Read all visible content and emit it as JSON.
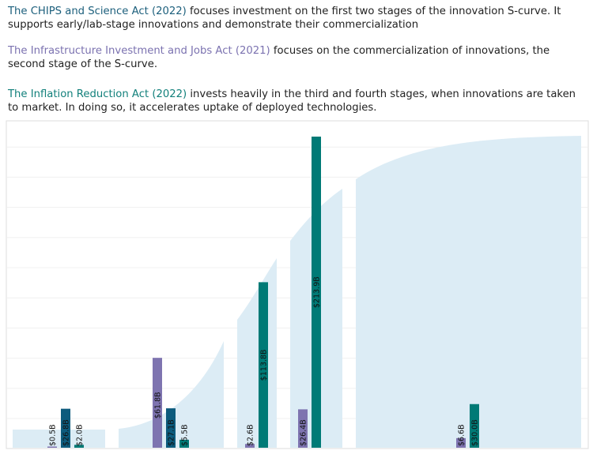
{
  "paragraphs": [
    {
      "title": "The CHIPS and Science Act (2022)",
      "text": " focuses investment on the first two stages of the innovation S-curve. It supports early/lab-stage innovations and demonstrate their commercialization"
    },
    {
      "title": "The Infrastructure Investment and Jobs Act (2021)",
      "text": " focuses on the commercialization of innovations, the second stage of the S-curve."
    },
    {
      "title": "The Inflation Reduction Act (2022)",
      "text": " invests heavily in the third and fourth stages, when innovations are taken to market. In doing so, it accelerates uptake of deployed technologies."
    }
  ],
  "colors": {
    "chips": "#0d5b7d",
    "iija": "#7e74b0",
    "ira": "#007a76",
    "s_curve": "#dcecf5"
  },
  "chart_data": {
    "type": "bar",
    "grid": true,
    "ylim": [
      0,
      225
    ],
    "stages": [
      {
        "bars": [
          {
            "act": "iija",
            "value": 0.5,
            "label": "$0.5B"
          },
          {
            "act": "chips",
            "value": 26.8,
            "label": "$26.8B"
          },
          {
            "act": "ira",
            "value": 2.0,
            "label": "$2.0B"
          }
        ]
      },
      {
        "bars": [
          {
            "act": "iija",
            "value": 61.8,
            "label": "$61.8B"
          },
          {
            "act": "chips",
            "value": 27.1,
            "label": "$27.1B"
          },
          {
            "act": "ira",
            "value": 5.5,
            "label": "$5.5B"
          }
        ]
      },
      {
        "bars": [
          {
            "act": "iija",
            "value": 2.6,
            "label": "$2.6B"
          },
          {
            "act": "ira",
            "value": 113.8,
            "label": "$113.8B"
          }
        ]
      },
      {
        "bars": [
          {
            "act": "iija",
            "value": 26.4,
            "label": "$26.4B"
          },
          {
            "act": "ira",
            "value": 213.9,
            "label": "$213.9B"
          }
        ]
      },
      {
        "bars": [
          {
            "act": "iija",
            "value": 6.6,
            "label": "$6.6B"
          },
          {
            "act": "ira",
            "value": 30.0,
            "label": "$30.0B"
          }
        ]
      }
    ]
  }
}
